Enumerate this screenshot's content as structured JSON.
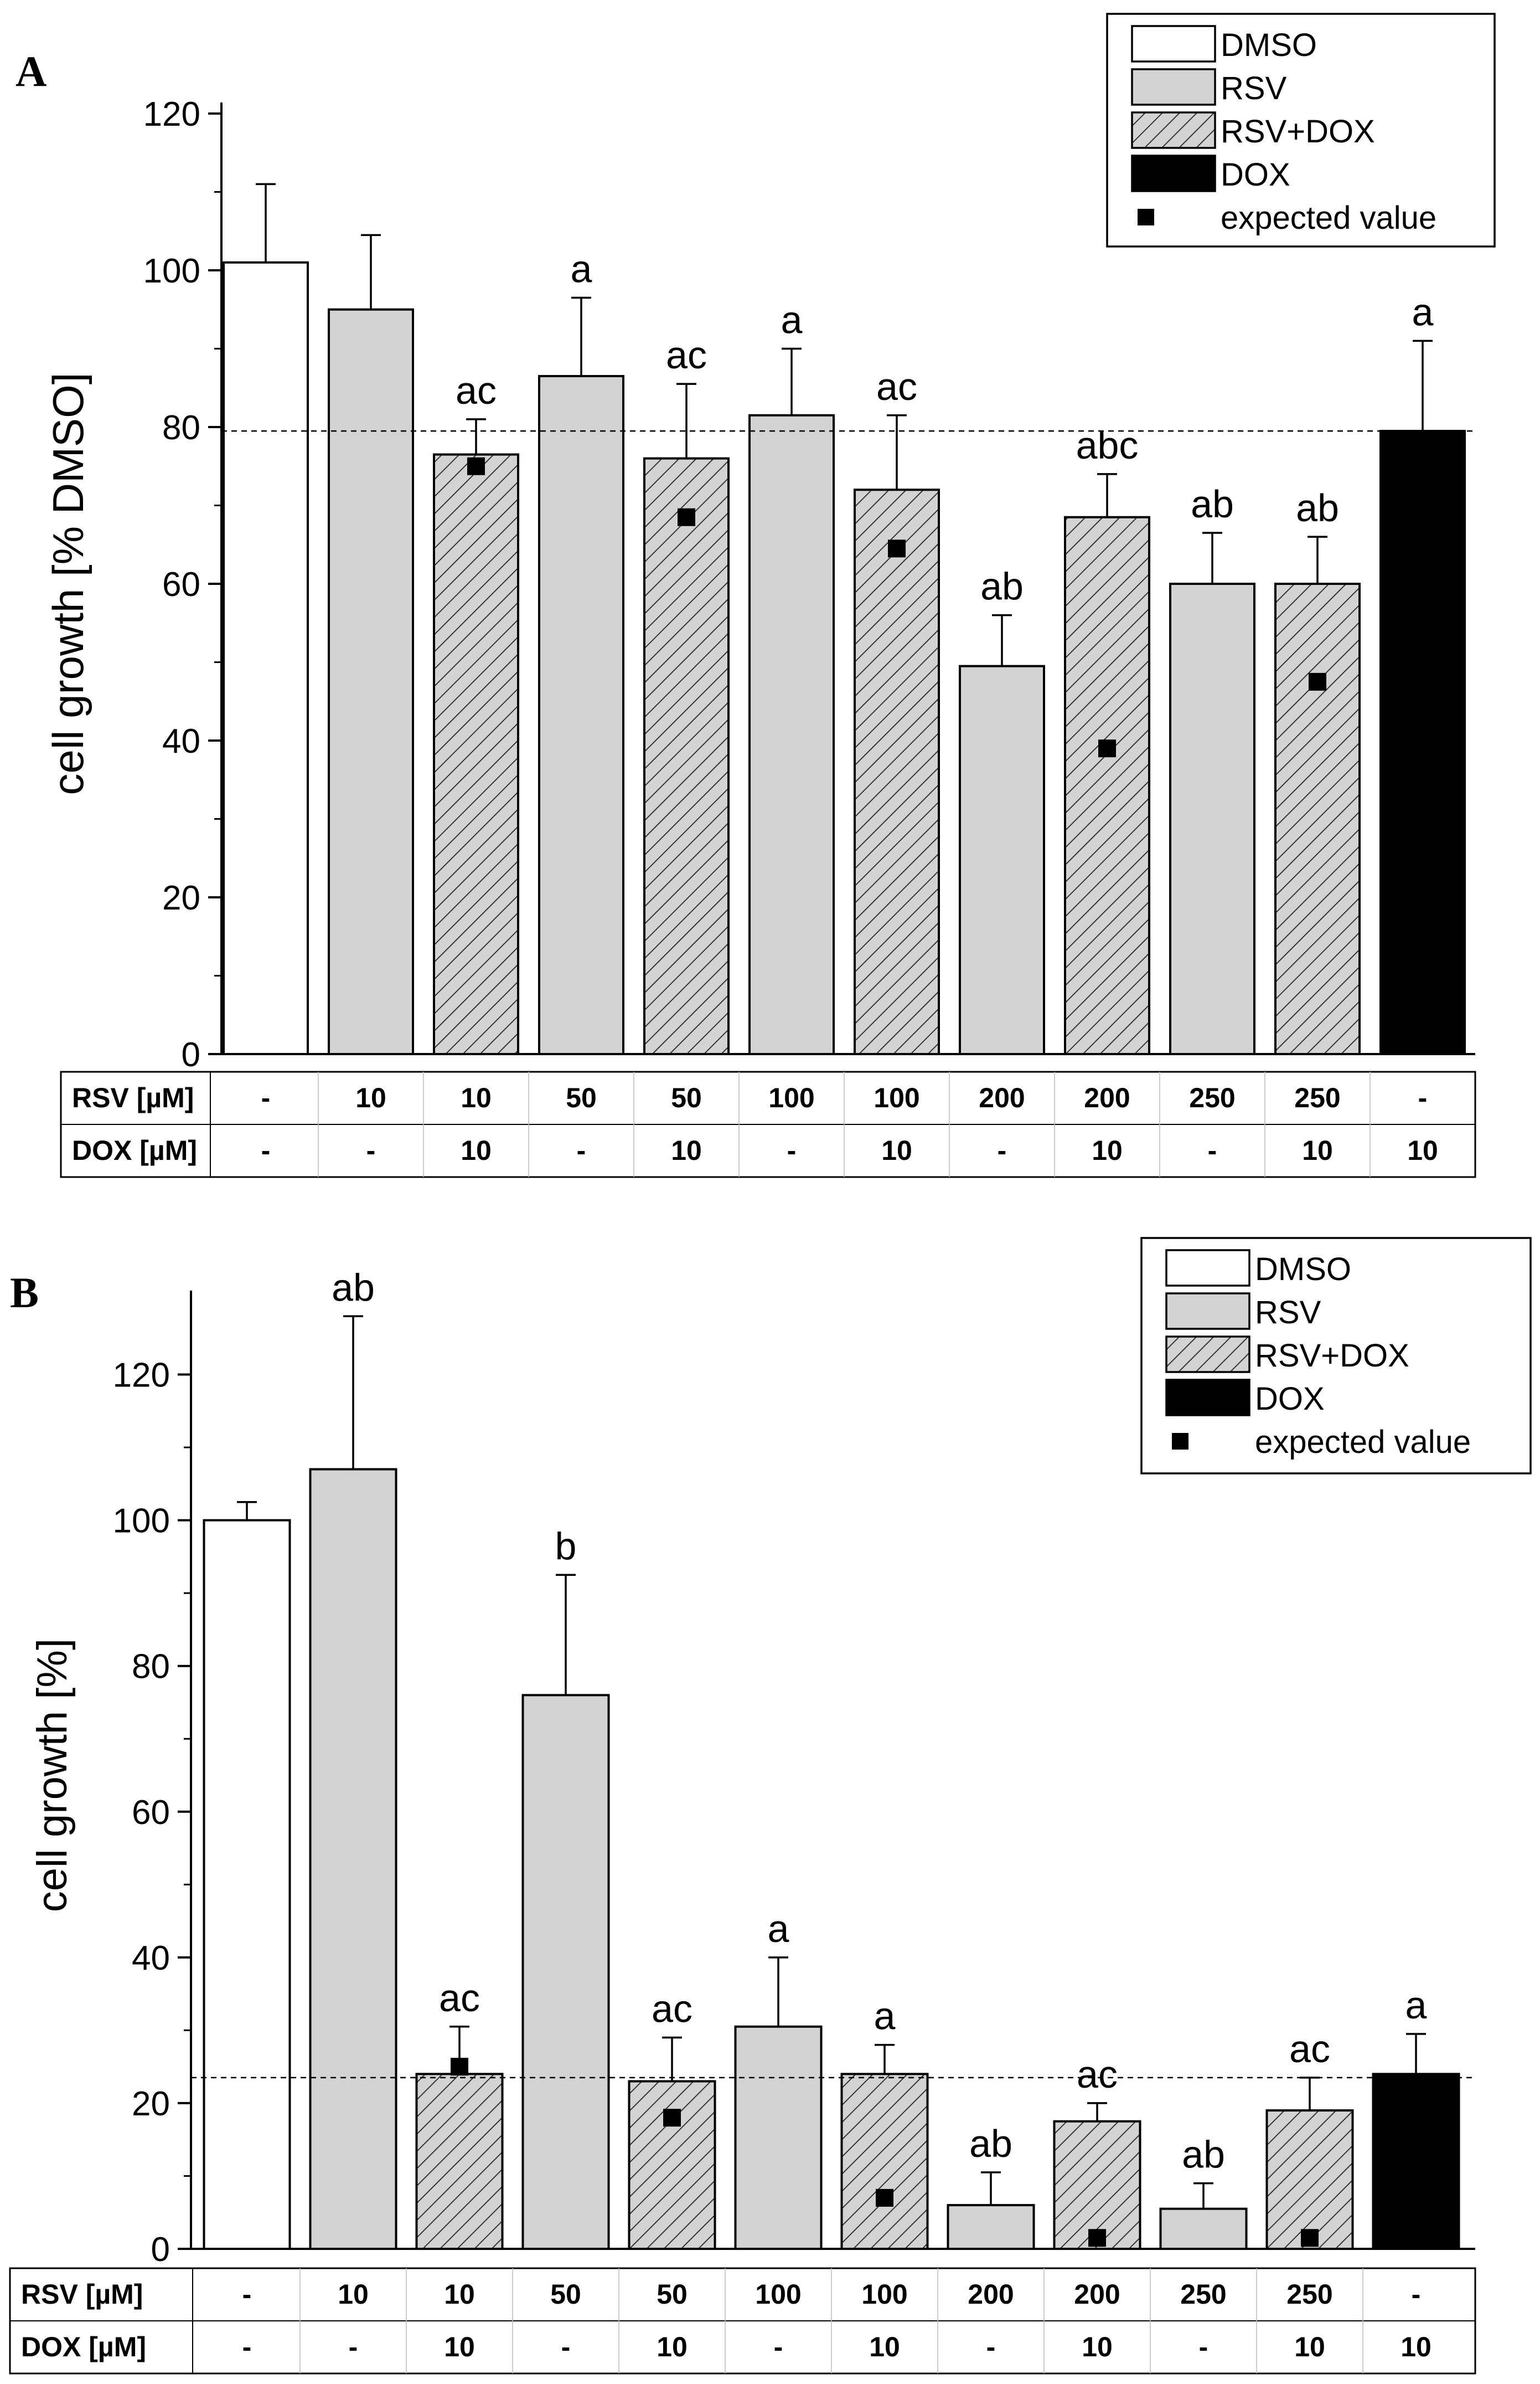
{
  "chart_data": [
    {
      "panel": "A",
      "type": "bar",
      "ylabel": "cell growth [% DMSO]",
      "ylim": [
        0,
        120
      ],
      "yticks": [
        0,
        20,
        40,
        60,
        80,
        100,
        120
      ],
      "reference_line": 79.5,
      "legend": {
        "position": "top-right",
        "entries": [
          {
            "label": "DMSO",
            "key": "dmso"
          },
          {
            "label": "RSV",
            "key": "rsv"
          },
          {
            "label": "RSV+DOX",
            "key": "rsvdox"
          },
          {
            "label": "DOX",
            "key": "dox"
          },
          {
            "label": "expected value",
            "key": "expected"
          }
        ]
      },
      "table": {
        "row_labels": [
          "RSV [µM]",
          "DOX [µM]"
        ],
        "rsv": [
          "-",
          "10",
          "10",
          "50",
          "50",
          "100",
          "100",
          "200",
          "200",
          "250",
          "250",
          "-"
        ],
        "dox": [
          "-",
          "-",
          "10",
          "-",
          "10",
          "-",
          "10",
          "-",
          "10",
          "-",
          "10",
          "10"
        ]
      },
      "bars": [
        {
          "group": "dmso",
          "value": 101,
          "error": 10,
          "letter": "",
          "expected": null
        },
        {
          "group": "rsv",
          "value": 95,
          "error": 9.5,
          "letter": "",
          "expected": null
        },
        {
          "group": "rsvdox",
          "value": 76.5,
          "error": 4.5,
          "letter": "ac",
          "expected": 75
        },
        {
          "group": "rsv",
          "value": 86.5,
          "error": 10,
          "letter": "a",
          "expected": null
        },
        {
          "group": "rsvdox",
          "value": 76,
          "error": 9.5,
          "letter": "ac",
          "expected": 68.5
        },
        {
          "group": "rsv",
          "value": 81.5,
          "error": 8.5,
          "letter": "a",
          "expected": null
        },
        {
          "group": "rsvdox",
          "value": 72,
          "error": 9.5,
          "letter": "ac",
          "expected": 64.5
        },
        {
          "group": "rsv",
          "value": 49.5,
          "error": 6.5,
          "letter": "ab",
          "expected": null
        },
        {
          "group": "rsvdox",
          "value": 68.5,
          "error": 5.5,
          "letter": "abc",
          "expected": 39
        },
        {
          "group": "rsv",
          "value": 60,
          "error": 6.5,
          "letter": "ab",
          "expected": null
        },
        {
          "group": "rsvdox",
          "value": 60,
          "error": 6,
          "letter": "ab",
          "expected": 47.5
        },
        {
          "group": "dox",
          "value": 79.5,
          "error": 11.5,
          "letter": "a",
          "expected": null
        }
      ]
    },
    {
      "panel": "B",
      "type": "bar",
      "ylabel": "cell growth [%]",
      "ylim": [
        0,
        130
      ],
      "yticks": [
        0,
        20,
        40,
        60,
        80,
        100,
        120
      ],
      "reference_line": 23.5,
      "legend": {
        "position": "top-right",
        "entries": [
          {
            "label": "DMSO",
            "key": "dmso"
          },
          {
            "label": "RSV",
            "key": "rsv"
          },
          {
            "label": "RSV+DOX",
            "key": "rsvdox"
          },
          {
            "label": "DOX",
            "key": "dox"
          },
          {
            "label": "expected value",
            "key": "expected"
          }
        ]
      },
      "table": {
        "row_labels": [
          "RSV [µM]",
          "DOX [µM]"
        ],
        "rsv": [
          "-",
          "10",
          "10",
          "50",
          "50",
          "100",
          "100",
          "200",
          "200",
          "250",
          "250",
          "-"
        ],
        "dox": [
          "-",
          "-",
          "10",
          "-",
          "10",
          "-",
          "10",
          "-",
          "10",
          "-",
          "10",
          "10"
        ]
      },
      "bars": [
        {
          "group": "dmso",
          "value": 100,
          "error": 2.5,
          "letter": "",
          "expected": null
        },
        {
          "group": "rsv",
          "value": 107,
          "error": 21,
          "letter": "ab",
          "expected": null
        },
        {
          "group": "rsvdox",
          "value": 24,
          "error": 6.5,
          "letter": "ac",
          "expected": 25
        },
        {
          "group": "rsv",
          "value": 76,
          "error": 16.5,
          "letter": "b",
          "expected": null
        },
        {
          "group": "rsvdox",
          "value": 23,
          "error": 6,
          "letter": "ac",
          "expected": 18
        },
        {
          "group": "rsv",
          "value": 30.5,
          "error": 9.5,
          "letter": "a",
          "expected": null
        },
        {
          "group": "rsvdox",
          "value": 24,
          "error": 4,
          "letter": "a",
          "expected": 7
        },
        {
          "group": "rsv",
          "value": 6,
          "error": 4.5,
          "letter": "ab",
          "expected": null
        },
        {
          "group": "rsvdox",
          "value": 17.5,
          "error": 2.5,
          "letter": "ac",
          "expected": 1.5
        },
        {
          "group": "rsv",
          "value": 5.5,
          "error": 3.5,
          "letter": "ab",
          "expected": null
        },
        {
          "group": "rsvdox",
          "value": 19,
          "error": 4.5,
          "letter": "ac",
          "expected": 1.5
        },
        {
          "group": "dox",
          "value": 24,
          "error": 5.5,
          "letter": "a",
          "expected": null
        }
      ]
    }
  ]
}
